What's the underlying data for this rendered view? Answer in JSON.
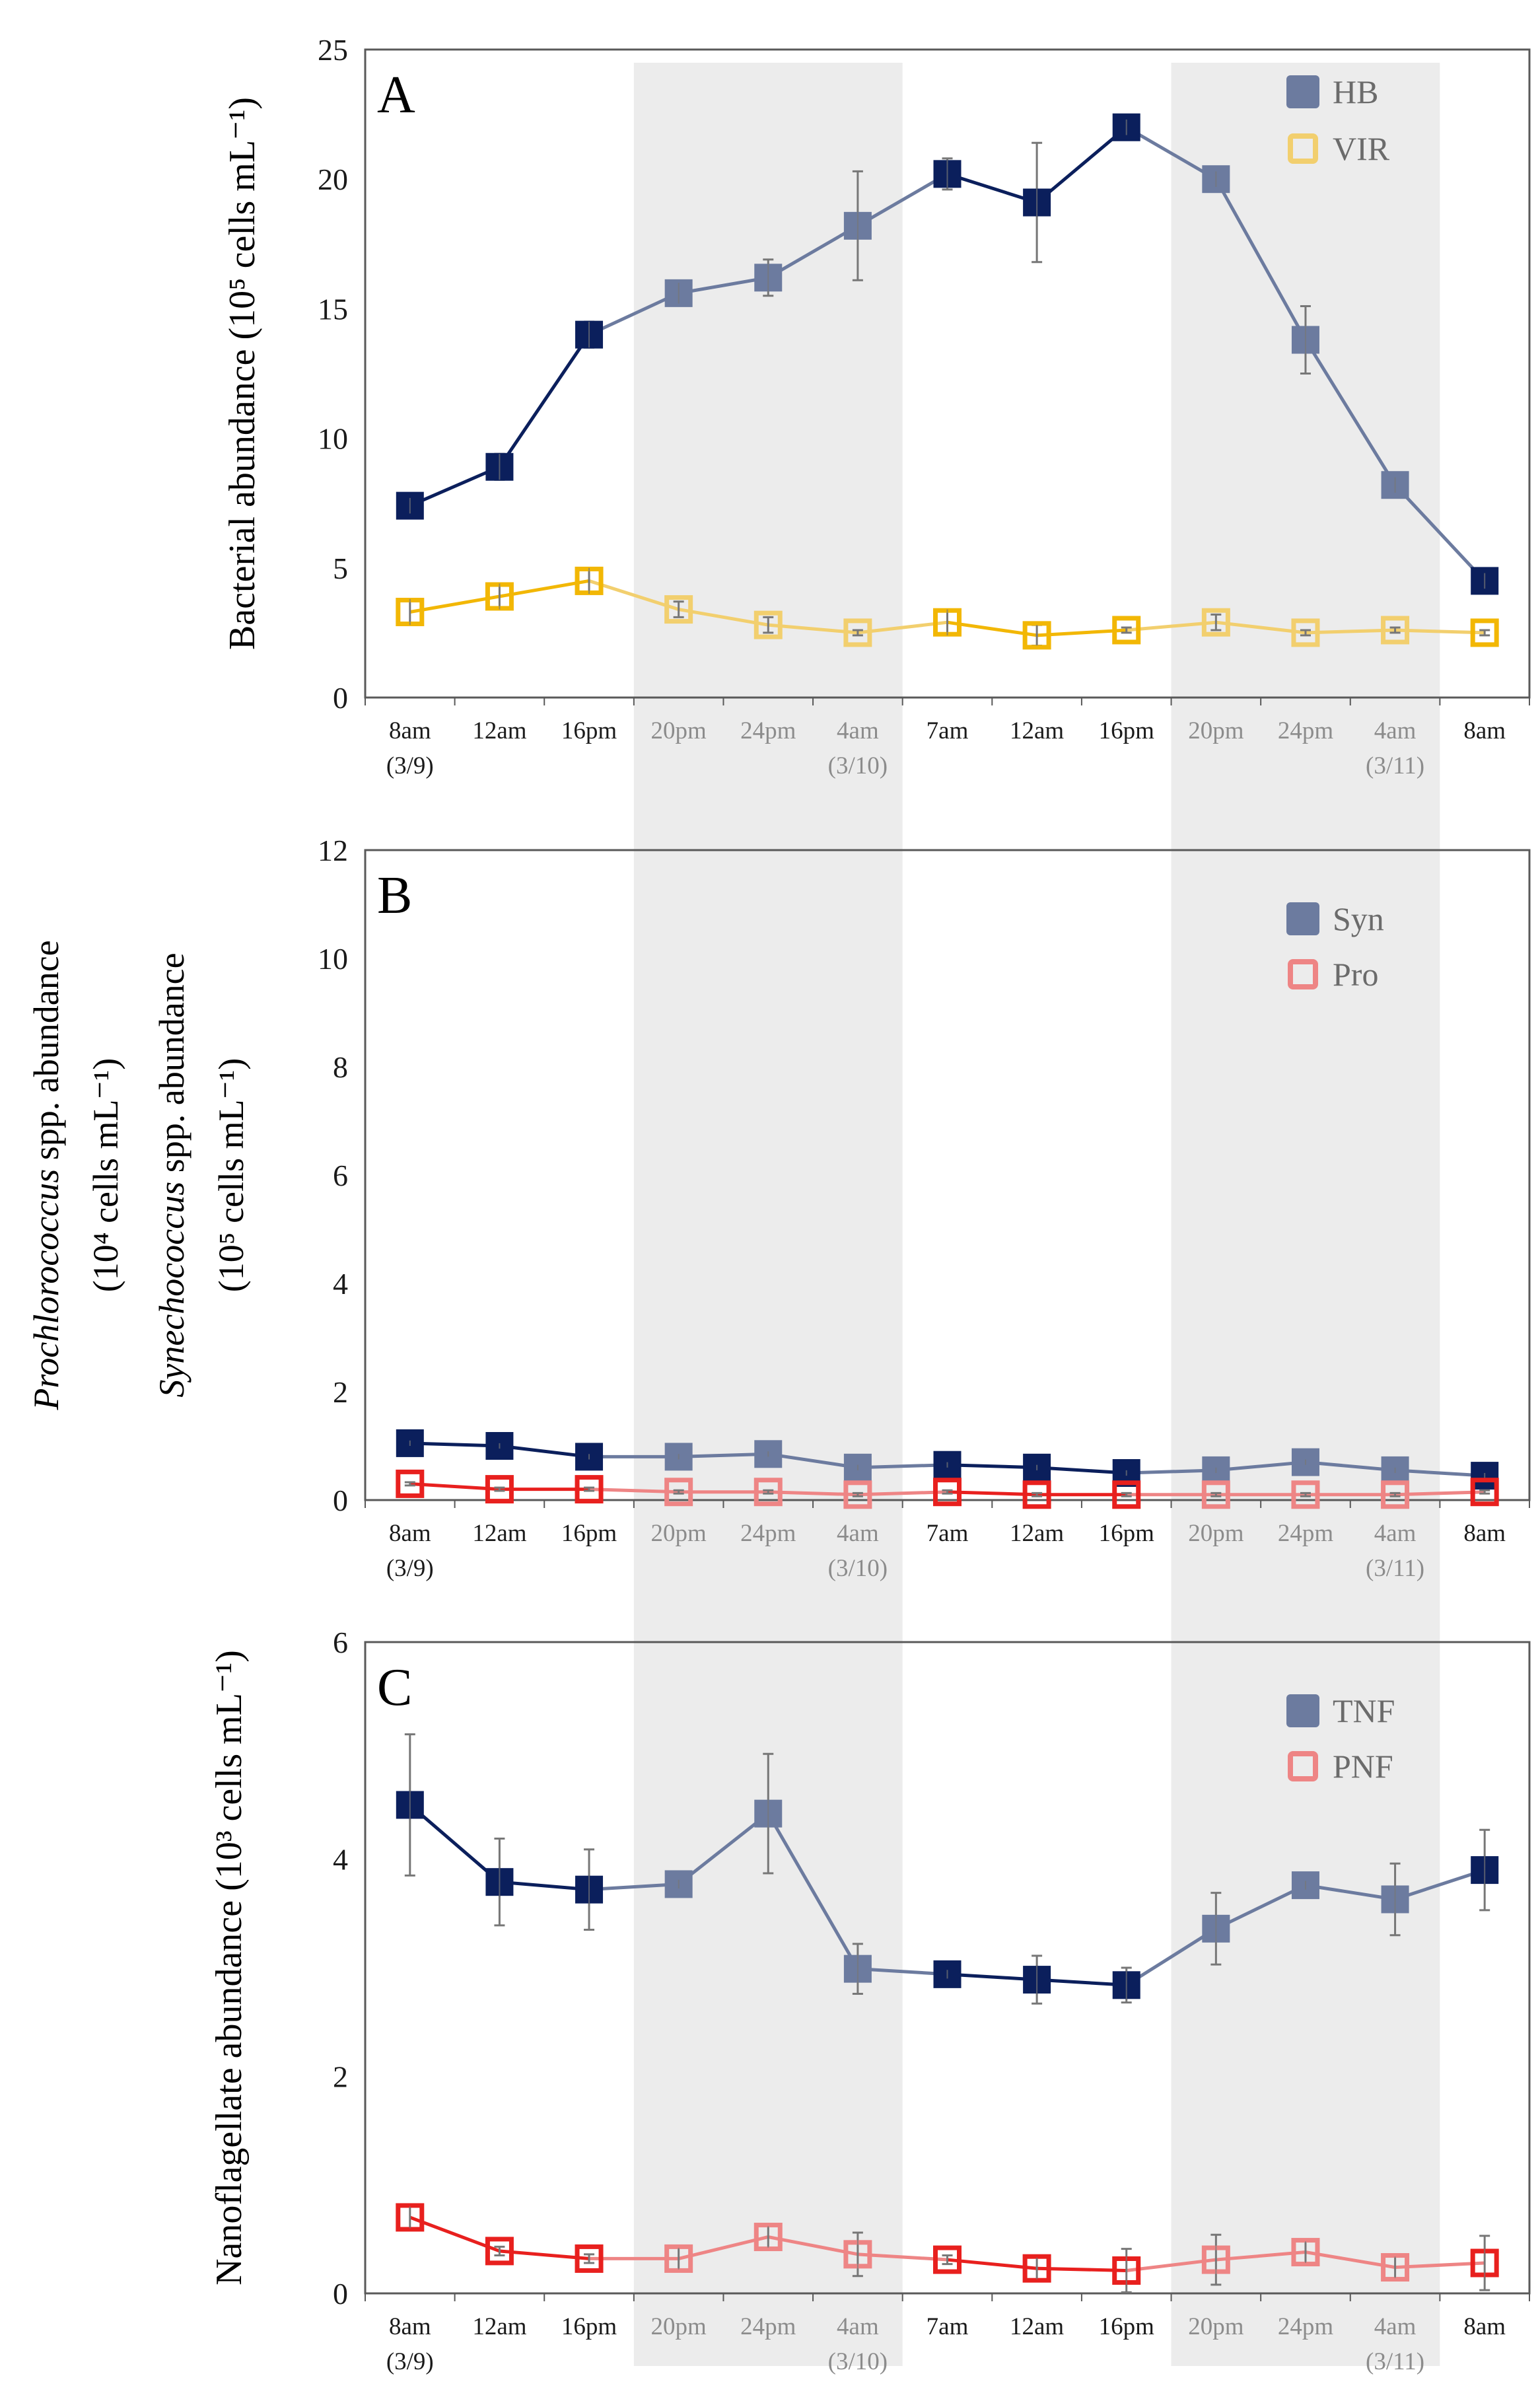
{
  "chart_data": [
    {
      "type": "line",
      "panel_label": "A",
      "ylabel": "Bacterial abundance (10⁵ cells mL⁻¹)",
      "ylim": [
        0,
        25
      ],
      "yticks": [
        0,
        5,
        10,
        15,
        20,
        25
      ],
      "categories": [
        [
          "8am",
          "(3/9)"
        ],
        [
          "12am",
          ""
        ],
        [
          "16pm",
          ""
        ],
        [
          "20pm",
          ""
        ],
        [
          "24pm",
          ""
        ],
        [
          "4am",
          "(3/10)"
        ],
        [
          "7am",
          ""
        ],
        [
          "12am",
          ""
        ],
        [
          "16pm",
          ""
        ],
        [
          "20pm",
          ""
        ],
        [
          "24pm",
          ""
        ],
        [
          "4am",
          "(3/11)"
        ],
        [
          "8am",
          ""
        ]
      ],
      "night_indices": [
        3,
        4,
        5,
        9,
        10,
        11
      ],
      "series": [
        {
          "name": "HB",
          "marker": "filled-square",
          "color": "#0b1f5c",
          "night_color": "#6c7b9f",
          "values": [
            7.4,
            8.9,
            14.0,
            15.6,
            16.2,
            18.2,
            20.2,
            19.1,
            22.0,
            20.0,
            13.8,
            8.2,
            4.5
          ],
          "errors": [
            0.3,
            0.5,
            0.5,
            0.4,
            0.7,
            2.1,
            0.6,
            2.3,
            0.3,
            0.3,
            1.3,
            0.3,
            0.3
          ]
        },
        {
          "name": "VIR",
          "marker": "open-square",
          "color": "#f2b705",
          "night_color": "#f2cf6e",
          "values": [
            3.3,
            3.9,
            4.5,
            3.4,
            2.8,
            2.5,
            2.9,
            2.4,
            2.6,
            2.9,
            2.5,
            2.6,
            2.5
          ],
          "errors": [
            0.5,
            0.5,
            0.5,
            0.3,
            0.3,
            0.1,
            0.5,
            0.4,
            0.1,
            0.3,
            0.1,
            0.1,
            0.1
          ]
        }
      ],
      "legend": "top-right"
    },
    {
      "type": "line",
      "panel_label": "B",
      "ylabel_lines": [
        {
          "italic": "Prochlorococcus",
          "rest": " spp. abundance"
        },
        {
          "italic": "",
          "rest": "(10⁴ cells mL⁻¹)"
        },
        {
          "italic": "Synechococcus",
          "rest": " spp. abundance"
        },
        {
          "italic": "",
          "rest": "(10⁵ cells mL⁻¹)"
        }
      ],
      "ylim": [
        0,
        12
      ],
      "yticks": [
        0,
        2,
        4,
        6,
        8,
        10,
        12
      ],
      "categories": [
        [
          "8am",
          "(3/9)"
        ],
        [
          "12am",
          ""
        ],
        [
          "16pm",
          ""
        ],
        [
          "20pm",
          ""
        ],
        [
          "24pm",
          ""
        ],
        [
          "4am",
          "(3/10)"
        ],
        [
          "7am",
          ""
        ],
        [
          "12am",
          ""
        ],
        [
          "16pm",
          ""
        ],
        [
          "20pm",
          ""
        ],
        [
          "24pm",
          ""
        ],
        [
          "4am",
          "(3/11)"
        ],
        [
          "8am",
          ""
        ]
      ],
      "night_indices": [
        3,
        4,
        5,
        9,
        10,
        11
      ],
      "series": [
        {
          "name": "Syn",
          "marker": "filled-square",
          "color": "#0b1f5c",
          "night_color": "#6c7b9f",
          "values": [
            1.05,
            1.0,
            0.8,
            0.8,
            0.85,
            0.6,
            0.65,
            0.6,
            0.5,
            0.55,
            0.7,
            0.55,
            0.45
          ],
          "errors": [
            0.05,
            0.05,
            0.05,
            0.05,
            0.05,
            0.05,
            0.05,
            0.05,
            0.05,
            0.05,
            0.05,
            0.05,
            0.05
          ]
        },
        {
          "name": "Pro",
          "marker": "open-square",
          "color": "#e8201e",
          "night_color": "#ee8585",
          "values": [
            0.3,
            0.2,
            0.2,
            0.15,
            0.15,
            0.1,
            0.15,
            0.1,
            0.1,
            0.1,
            0.1,
            0.1,
            0.15
          ],
          "errors": [
            0.03,
            0.03,
            0.03,
            0.03,
            0.03,
            0.03,
            0.03,
            0.03,
            0.03,
            0.03,
            0.03,
            0.03,
            0.03
          ]
        }
      ],
      "legend": "top-right"
    },
    {
      "type": "line",
      "panel_label": "C",
      "ylabel": "Nanoflagellate abundance (10³ cells mL⁻¹)",
      "ylim": [
        0,
        6
      ],
      "yticks": [
        0,
        2,
        4,
        6
      ],
      "categories": [
        [
          "8am",
          "(3/9)"
        ],
        [
          "12am",
          ""
        ],
        [
          "16pm",
          ""
        ],
        [
          "20pm",
          ""
        ],
        [
          "24pm",
          ""
        ],
        [
          "4am",
          "(3/10)"
        ],
        [
          "7am",
          ""
        ],
        [
          "12am",
          ""
        ],
        [
          "16pm",
          ""
        ],
        [
          "20pm",
          ""
        ],
        [
          "24pm",
          ""
        ],
        [
          "4am",
          "(3/11)"
        ],
        [
          "8am",
          ""
        ]
      ],
      "night_indices": [
        3,
        4,
        5,
        9,
        10,
        11
      ],
      "series": [
        {
          "name": "TNF",
          "marker": "filled-square",
          "color": "#0b1f5c",
          "night_color": "#6c7b9f",
          "values": [
            4.5,
            3.79,
            3.72,
            3.77,
            4.42,
            2.99,
            2.94,
            2.89,
            2.84,
            3.36,
            3.76,
            3.63,
            3.9
          ],
          "errors": [
            0.65,
            0.4,
            0.37,
            0.04,
            0.55,
            0.23,
            0.04,
            0.22,
            0.16,
            0.33,
            0.04,
            0.33,
            0.37
          ]
        },
        {
          "name": "PNF",
          "marker": "open-square",
          "color": "#e8201e",
          "night_color": "#ee8585",
          "values": [
            0.7,
            0.39,
            0.32,
            0.32,
            0.52,
            0.36,
            0.31,
            0.23,
            0.21,
            0.31,
            0.38,
            0.24,
            0.28
          ],
          "errors": [
            0.1,
            0.04,
            0.04,
            0.1,
            0.1,
            0.2,
            0.04,
            0.1,
            0.2,
            0.23,
            0.1,
            0.1,
            0.25
          ]
        }
      ],
      "legend": "top-right"
    }
  ],
  "colors": {
    "night_shading": "#ececec",
    "axis": "#595959",
    "day_label": "#1a1a1a",
    "night_label": "#8c8c8c"
  }
}
